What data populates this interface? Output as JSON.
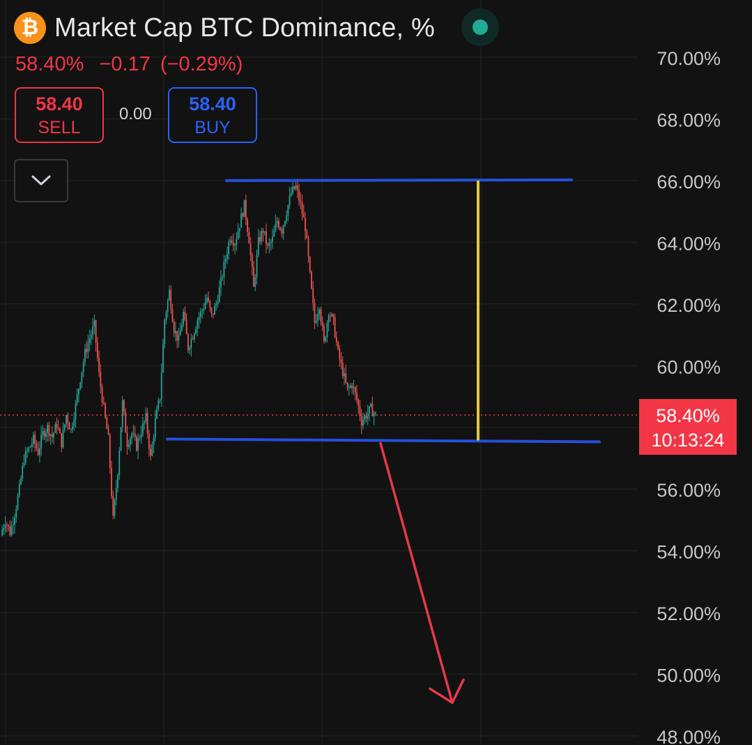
{
  "header": {
    "icon": "bitcoin-icon",
    "title": "Market Cap BTC Dominance, %",
    "status_indicator": "live-market-dot"
  },
  "quote": {
    "last": "58.40%",
    "change": "−0.17",
    "change_percent": "(−0.29%)"
  },
  "trade": {
    "sell_price": "58.40",
    "sell_label": "SELL",
    "spread": "0.00",
    "buy_price": "58.40",
    "buy_label": "BUY"
  },
  "collapse_icon": "chevron-down-icon",
  "price_badge": {
    "value": "58.40%",
    "countdown": "10:13:24"
  },
  "colors": {
    "background": "#121212",
    "up": "#26a69a",
    "down": "#ef5350",
    "sell": "#f23645",
    "buy": "#2962ff",
    "drawing_line": "#2451d9",
    "measure_line": "#e6c542",
    "arrow": "#e8384a"
  },
  "chart_data": {
    "type": "line",
    "style": "candlestick",
    "ylim": [
      48,
      70
    ],
    "y_ticks": [
      "70.00%",
      "68.00%",
      "66.00%",
      "64.00%",
      "62.00%",
      "60.00%",
      "58.00%",
      "56.00%",
      "54.00%",
      "52.00%",
      "50.00%",
      "48.00%"
    ],
    "y_tick_values": [
      70,
      68,
      66,
      64,
      62,
      60,
      58,
      56,
      54,
      52,
      50,
      48
    ],
    "grid": true,
    "x_index_range": [
      0,
      240
    ],
    "series": [
      {
        "values": [
          54.5,
          55.0,
          54.6,
          55.2,
          56.0,
          57.0,
          57.3,
          57.6,
          57.2,
          57.8,
          58.0,
          57.7,
          58.1,
          57.5,
          58.4,
          57.9,
          58.7,
          59.6,
          60.4,
          60.9,
          61.3,
          59.7,
          58.6,
          57.6,
          55.0,
          56.6,
          58.8,
          57.5,
          57.8,
          57.4,
          57.9,
          58.3,
          57.0,
          58.2,
          59.0,
          61.5,
          62.4,
          61.2,
          60.8,
          61.7,
          60.6,
          61.0,
          61.5,
          61.8,
          62.2,
          61.6,
          62.0,
          62.7,
          63.5,
          64.2,
          64.0,
          64.6,
          65.2,
          64.1,
          62.5,
          64.0,
          64.4,
          63.8,
          64.1,
          64.7,
          64.4,
          65.0,
          65.6,
          65.8,
          65.2,
          64.5,
          62.9,
          61.4,
          62.0,
          60.7,
          61.8,
          61.4,
          60.4,
          59.8,
          59.2,
          59.4,
          58.9,
          58.2,
          58.4,
          58.6,
          58.4
        ]
      }
    ],
    "drawings": {
      "resistance_level": 66.0,
      "support_level": 57.6,
      "current_price_line": 58.4,
      "projection_arrow_target": 49.1
    }
  }
}
